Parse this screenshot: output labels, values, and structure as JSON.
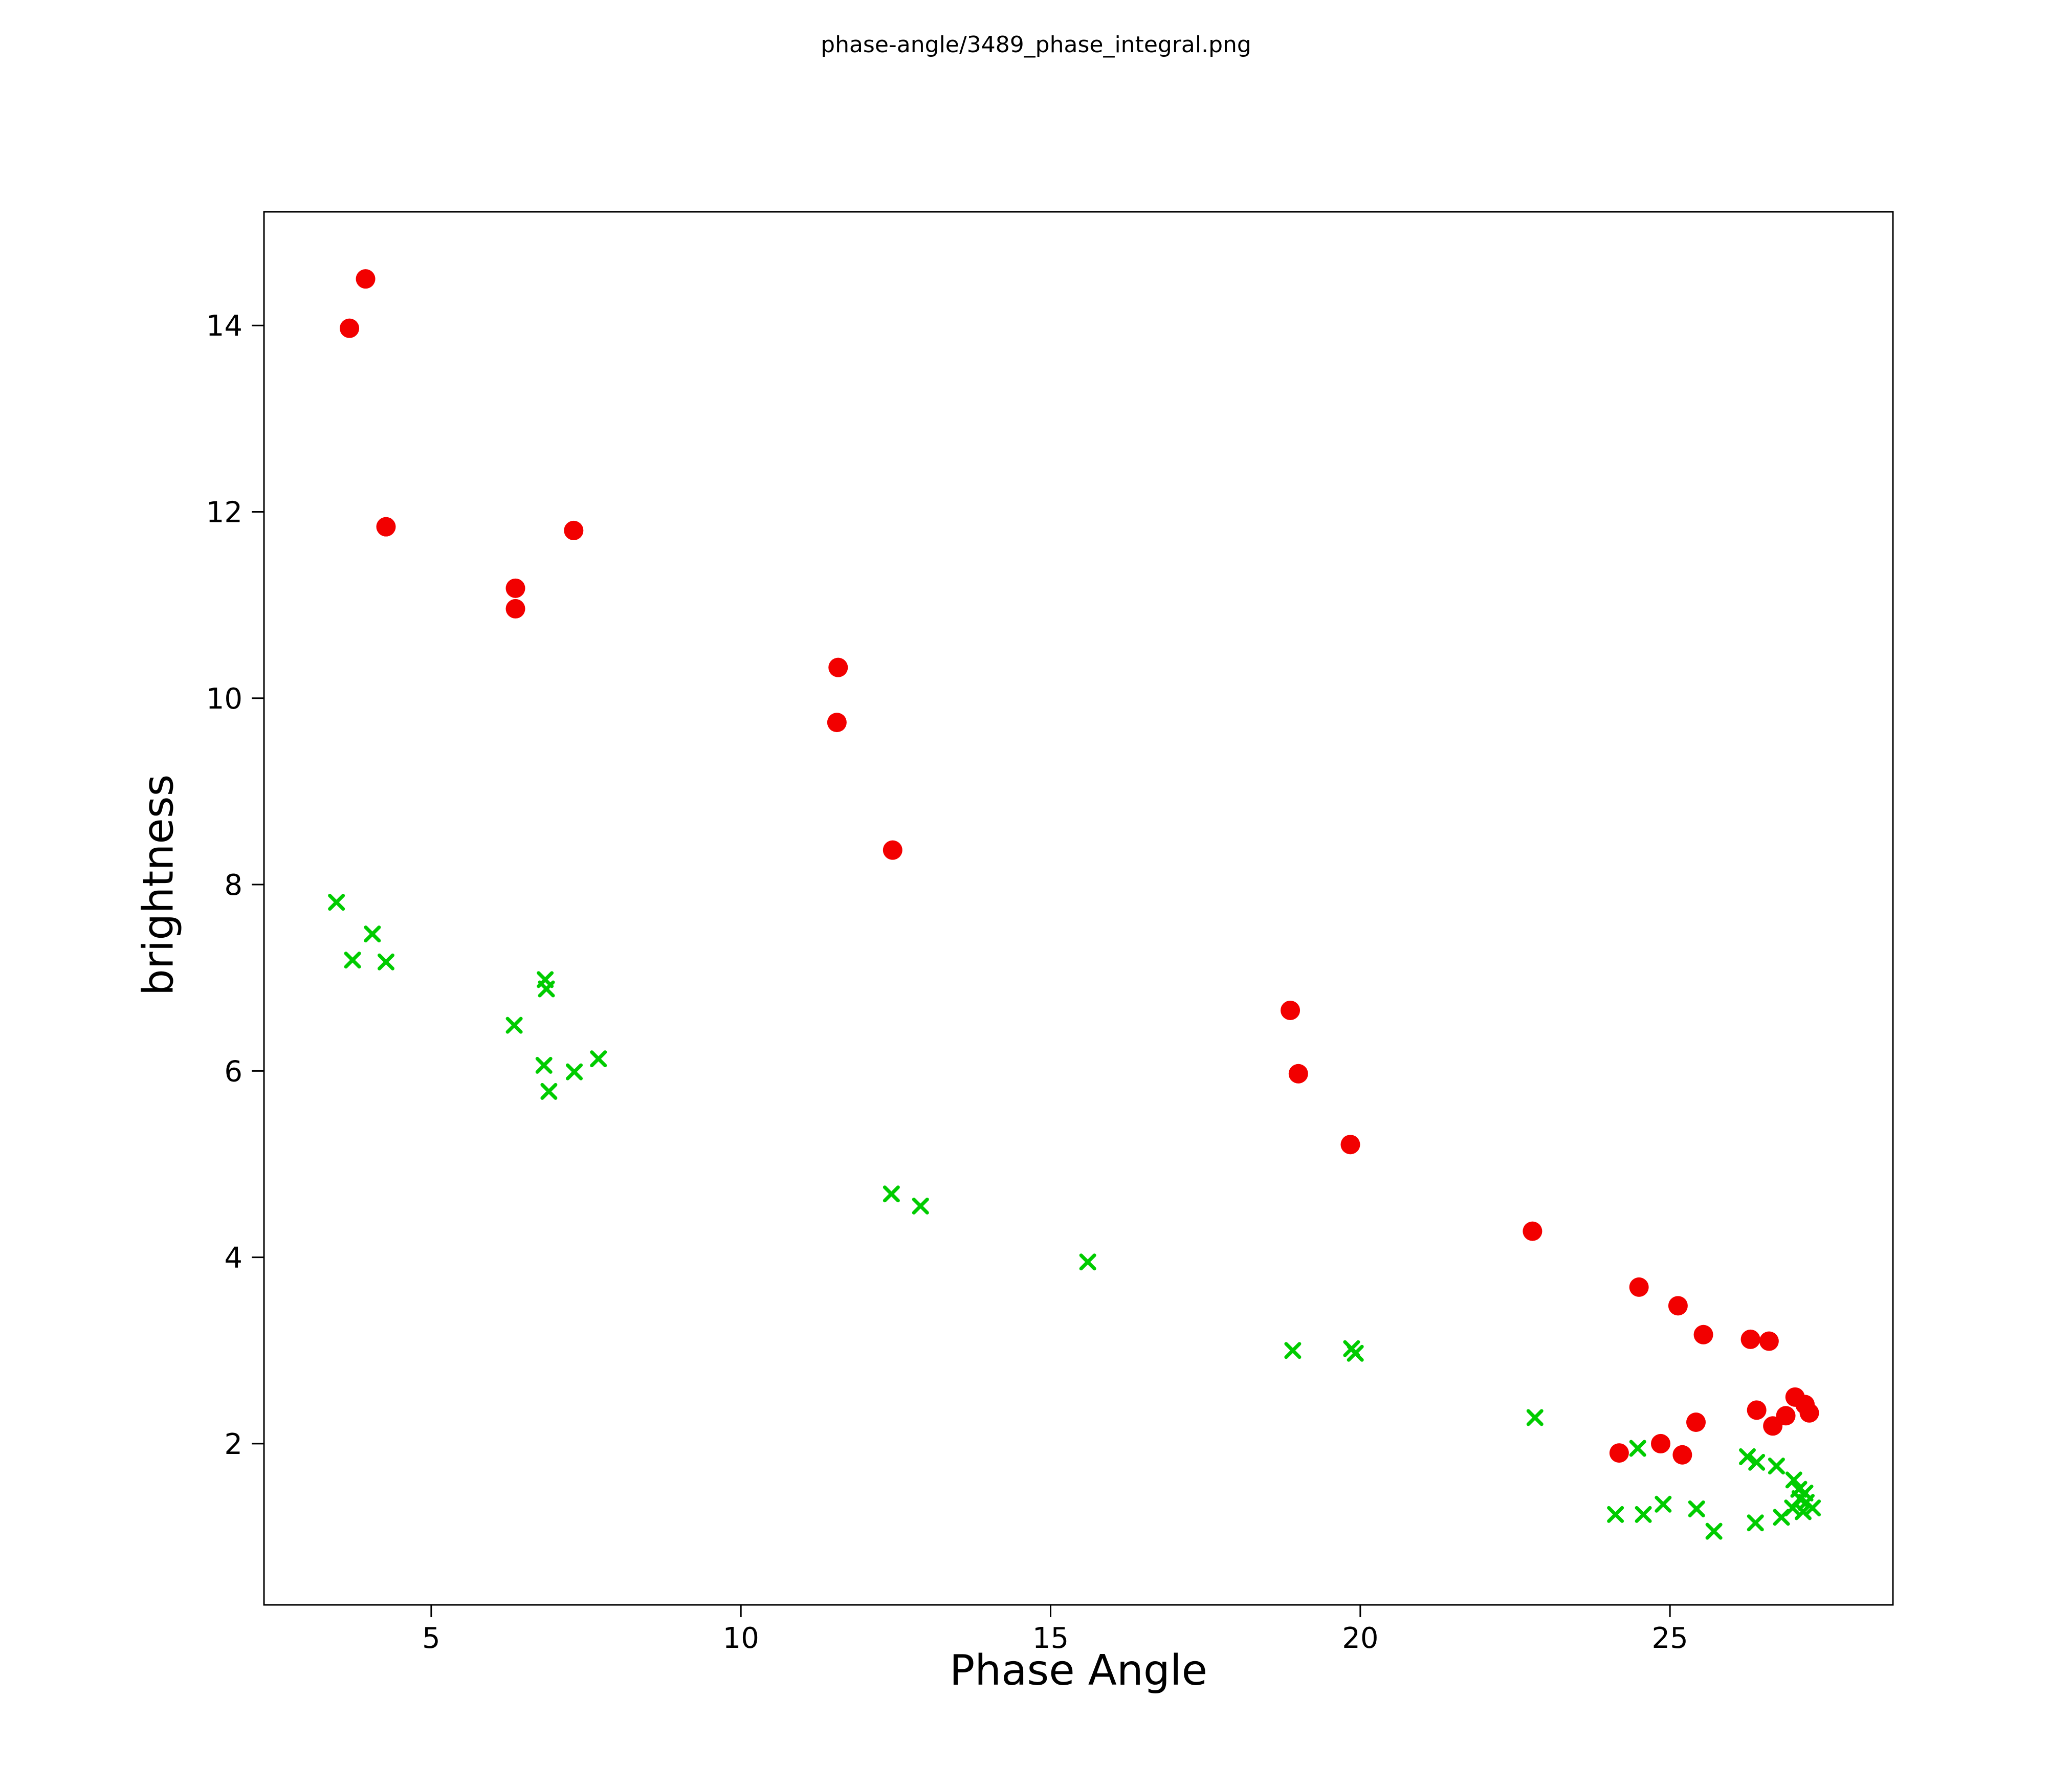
{
  "chart_data": {
    "type": "scatter",
    "title": "phase-angle/3489_phase_integral.png",
    "xlabel": "Phase Angle",
    "ylabel": "brightness",
    "xlim": [
      2.3,
      28.6
    ],
    "ylim": [
      0.27,
      15.22
    ],
    "xticks": [
      5,
      10,
      15,
      20,
      25
    ],
    "yticks": [
      2,
      4,
      6,
      8,
      10,
      12,
      14
    ],
    "grid": false,
    "legend": "none",
    "series": [
      {
        "name": "red-circles",
        "marker": "circle",
        "color": "#f20000",
        "points": [
          [
            3.68,
            13.97
          ],
          [
            3.94,
            14.5
          ],
          [
            4.27,
            11.84
          ],
          [
            6.36,
            11.18
          ],
          [
            6.36,
            10.96
          ],
          [
            7.3,
            11.8
          ],
          [
            11.57,
            10.33
          ],
          [
            11.55,
            9.74
          ],
          [
            12.45,
            8.37
          ],
          [
            18.87,
            6.65
          ],
          [
            19.0,
            5.97
          ],
          [
            19.84,
            5.21
          ],
          [
            22.78,
            4.28
          ],
          [
            24.5,
            3.68
          ],
          [
            25.13,
            3.48
          ],
          [
            25.54,
            3.17
          ],
          [
            26.3,
            3.12
          ],
          [
            26.6,
            3.1
          ],
          [
            24.18,
            1.9
          ],
          [
            24.85,
            2.0
          ],
          [
            25.2,
            1.88
          ],
          [
            25.42,
            2.23
          ],
          [
            26.4,
            2.36
          ],
          [
            26.66,
            2.19
          ],
          [
            26.87,
            2.3
          ],
          [
            27.02,
            2.5
          ],
          [
            27.18,
            2.42
          ],
          [
            27.25,
            2.33
          ]
        ]
      },
      {
        "name": "green-x",
        "marker": "x",
        "color": "#00cc00",
        "points": [
          [
            3.47,
            7.81
          ],
          [
            3.73,
            7.19
          ],
          [
            4.05,
            7.47
          ],
          [
            4.27,
            7.17
          ],
          [
            6.34,
            6.49
          ],
          [
            6.84,
            6.98
          ],
          [
            6.86,
            6.88
          ],
          [
            6.82,
            6.06
          ],
          [
            6.9,
            5.78
          ],
          [
            7.31,
            5.99
          ],
          [
            7.7,
            6.13
          ],
          [
            12.43,
            4.68
          ],
          [
            12.9,
            4.55
          ],
          [
            15.6,
            3.95
          ],
          [
            18.91,
            3.0
          ],
          [
            19.86,
            3.02
          ],
          [
            19.92,
            2.97
          ],
          [
            22.82,
            2.28
          ],
          [
            24.12,
            1.24
          ],
          [
            24.57,
            1.24
          ],
          [
            24.48,
            1.95
          ],
          [
            24.89,
            1.35
          ],
          [
            25.43,
            1.3
          ],
          [
            25.71,
            1.06
          ],
          [
            26.25,
            1.86
          ],
          [
            26.4,
            1.8
          ],
          [
            26.38,
            1.15
          ],
          [
            26.72,
            1.76
          ],
          [
            26.8,
            1.21
          ],
          [
            26.98,
            1.31
          ],
          [
            27.0,
            1.61
          ],
          [
            27.08,
            1.51
          ],
          [
            27.1,
            1.41
          ],
          [
            27.18,
            1.47
          ],
          [
            27.2,
            1.37
          ],
          [
            27.15,
            1.27
          ],
          [
            27.3,
            1.31
          ]
        ]
      }
    ]
  }
}
